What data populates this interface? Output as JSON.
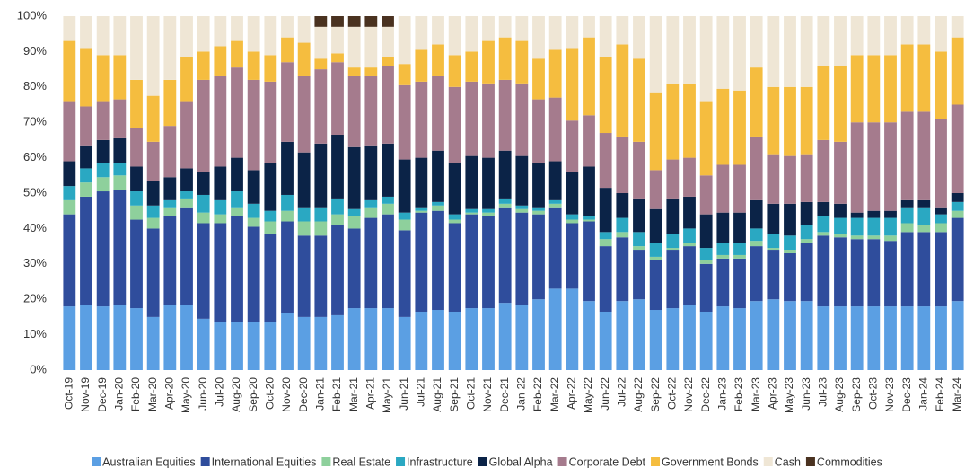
{
  "chart_data": {
    "type": "stacked_bar",
    "categories": [
      "Oct-19",
      "Nov-19",
      "Dec-19",
      "Jan-20",
      "Feb-20",
      "Mar-20",
      "Apr-20",
      "May-20",
      "Jun-20",
      "Jul-20",
      "Aug-20",
      "Sep-20",
      "Oct-20",
      "Nov-20",
      "Dec-20",
      "Jan-21",
      "Feb-21",
      "Mar-21",
      "Apr-21",
      "May-21",
      "Jun-21",
      "Jul-21",
      "Aug-21",
      "Sep-21",
      "Oct-21",
      "Nov-21",
      "Dec-21",
      "Jan-22",
      "Feb-22",
      "Mar-22",
      "Apr-22",
      "May-22",
      "Jun-22",
      "Jul-22",
      "Aug-22",
      "Sep-22",
      "Oct-22",
      "Nov-22",
      "Dec-22",
      "Jan-23",
      "Feb-23",
      "Mar-23",
      "Apr-23",
      "May-23",
      "Jun-23",
      "Jul-23",
      "Aug-23",
      "Sep-23",
      "Oct-23",
      "Nov-23",
      "Dec-23",
      "Jan-24",
      "Feb-24",
      "Mar-24"
    ],
    "series": [
      {
        "name": "Australian Equities",
        "color": "#5b9fe3",
        "values": [
          18,
          18.5,
          18,
          18.5,
          17.5,
          15,
          18.5,
          18.5,
          14.5,
          13.5,
          13.5,
          13.5,
          13.5,
          16,
          15,
          15,
          15.5,
          17.5,
          17.5,
          17.5,
          15,
          16.5,
          17,
          16.5,
          17.5,
          17.5,
          19,
          18.5,
          20,
          23,
          23,
          19.5,
          16.5,
          19.5,
          20,
          17,
          17.5,
          18.5,
          16.5,
          18,
          17.5,
          19.5,
          20,
          19.5,
          19.5,
          18,
          18,
          18,
          18,
          18,
          18,
          18,
          18,
          19.5
        ]
      },
      {
        "name": "International Equities",
        "color": "#2f4d9c",
        "values": [
          26,
          30.5,
          32.5,
          32.5,
          25,
          25,
          25,
          27.5,
          27,
          28,
          30,
          27,
          25,
          26,
          23,
          23,
          25.5,
          22.5,
          25.5,
          26.5,
          24.5,
          28,
          28,
          25,
          26.5,
          26,
          27,
          26,
          24,
          23,
          18.5,
          22.5,
          18.5,
          18,
          14,
          14,
          16.5,
          16.5,
          13.5,
          13.5,
          14,
          15.5,
          14,
          13.5,
          16.5,
          20,
          19.5,
          19,
          19,
          18.5,
          21,
          21,
          21,
          23.5
        ]
      },
      {
        "name": "Real Estate",
        "color": "#8ed09c",
        "values": [
          4,
          4,
          4,
          4,
          4,
          3,
          2.5,
          2.5,
          3,
          2.5,
          2.5,
          2.5,
          3.5,
          3,
          4,
          4,
          3,
          3.5,
          3,
          3,
          3,
          0.5,
          1.5,
          1,
          0.5,
          1,
          1,
          1,
          1,
          1,
          1,
          0.5,
          2,
          1.5,
          1,
          1,
          0.5,
          1,
          1,
          1,
          1,
          1.5,
          0.5,
          1,
          1,
          1,
          1,
          1,
          1,
          1.5,
          2.5,
          2,
          2.5,
          2
        ]
      },
      {
        "name": "Infrastructure",
        "color": "#2aa8c2",
        "values": [
          4,
          4,
          4,
          3.5,
          4,
          3.5,
          2,
          2,
          5,
          4,
          4.5,
          4,
          3,
          4.5,
          4,
          4,
          4.5,
          2,
          2,
          2,
          2,
          1,
          1,
          1.5,
          1,
          1,
          1.5,
          1,
          1,
          1,
          1.5,
          1,
          2,
          4,
          4,
          4,
          4,
          4,
          3.5,
          3.5,
          3.5,
          3.5,
          4,
          4,
          4,
          4.5,
          4.5,
          5,
          5,
          5,
          4.5,
          5,
          2.5,
          2.5
        ]
      },
      {
        "name": "Global Alpha",
        "color": "#0b2347",
        "values": [
          7,
          6.5,
          6.5,
          7,
          7,
          7,
          6.5,
          6.5,
          6.5,
          9.5,
          9.5,
          9.5,
          13.5,
          15,
          15.5,
          18,
          18,
          17.5,
          15.5,
          15,
          15,
          14,
          14.5,
          14.5,
          15,
          14.5,
          13.5,
          14,
          12.5,
          11,
          12,
          14,
          12.5,
          7,
          9.5,
          9.5,
          10,
          9,
          9.5,
          8.5,
          8.5,
          8,
          8.5,
          9,
          6.5,
          4,
          4,
          1.5,
          2,
          2,
          2,
          2,
          2,
          2.5
        ]
      },
      {
        "name": "Corporate Debt",
        "color": "#a57b8d",
        "values": [
          17,
          11,
          11,
          11,
          11,
          11,
          14.5,
          19,
          26,
          25.5,
          25.5,
          25.5,
          23,
          22.5,
          21.5,
          21,
          20.5,
          20,
          19.5,
          22,
          21,
          21.5,
          21,
          21.5,
          21,
          21,
          20,
          20.5,
          18,
          18,
          14.5,
          14.5,
          15.5,
          16,
          16,
          11,
          11,
          11,
          11,
          13.5,
          13.5,
          18,
          14,
          13.5,
          13.5,
          17.5,
          17.5,
          25.5,
          25,
          25,
          25,
          25,
          25,
          25
        ]
      },
      {
        "name": "Government Bonds",
        "color": "#f5bd3f",
        "values": [
          17,
          16.5,
          13,
          12.5,
          13.5,
          13,
          13,
          12.5,
          8,
          8.5,
          7.5,
          8,
          7.5,
          7,
          9.5,
          3,
          2.5,
          2.5,
          2.5,
          2.5,
          6,
          9,
          9,
          9,
          8.5,
          12,
          12,
          12,
          11.5,
          13.5,
          20.5,
          22,
          21.5,
          26,
          23.5,
          22,
          21.5,
          21,
          21,
          21.5,
          21,
          19.5,
          19,
          19.5,
          19,
          21,
          21.5,
          19,
          19,
          19,
          19,
          19,
          19,
          19
        ]
      },
      {
        "name": "Cash",
        "color": "#efe6d5",
        "values": [
          7,
          9,
          11,
          11,
          18,
          22.5,
          18,
          11.5,
          10,
          8.5,
          7,
          10,
          11,
          6,
          7.5,
          9,
          7.5,
          11.5,
          11.5,
          8.5,
          13.5,
          9.5,
          8,
          11,
          10,
          7,
          6,
          7,
          12,
          9.5,
          9,
          6,
          11.5,
          8,
          12,
          21.5,
          19,
          19,
          24,
          20.5,
          21,
          14.5,
          20,
          20,
          20,
          14,
          14,
          11,
          11,
          11,
          8,
          8,
          10,
          6
        ]
      },
      {
        "name": "Commodities",
        "color": "#4a3220",
        "values": [
          0,
          0,
          0,
          0,
          0,
          0,
          0,
          0,
          0,
          0,
          0,
          0,
          0,
          0,
          0,
          3,
          3,
          3,
          3,
          3,
          0,
          0,
          0,
          0,
          0,
          0,
          0,
          0,
          0,
          0,
          0,
          0,
          0,
          0,
          0,
          0,
          0,
          0,
          0,
          0,
          0,
          0,
          0,
          0,
          0,
          0,
          0,
          0,
          0,
          0,
          0,
          0,
          0,
          0
        ]
      }
    ],
    "ylim": [
      0,
      100
    ],
    "yticks": [
      {
        "value": 0,
        "label": "0%"
      },
      {
        "value": 10,
        "label": "10%"
      },
      {
        "value": 20,
        "label": "20%"
      },
      {
        "value": 30,
        "label": "30%"
      },
      {
        "value": 40,
        "label": "40%"
      },
      {
        "value": 50,
        "label": "50%"
      },
      {
        "value": 60,
        "label": "60%"
      },
      {
        "value": 70,
        "label": "70%"
      },
      {
        "value": 80,
        "label": "80%"
      },
      {
        "value": 90,
        "label": "90%"
      },
      {
        "value": 100,
        "label": "100%"
      }
    ],
    "grid": false
  }
}
